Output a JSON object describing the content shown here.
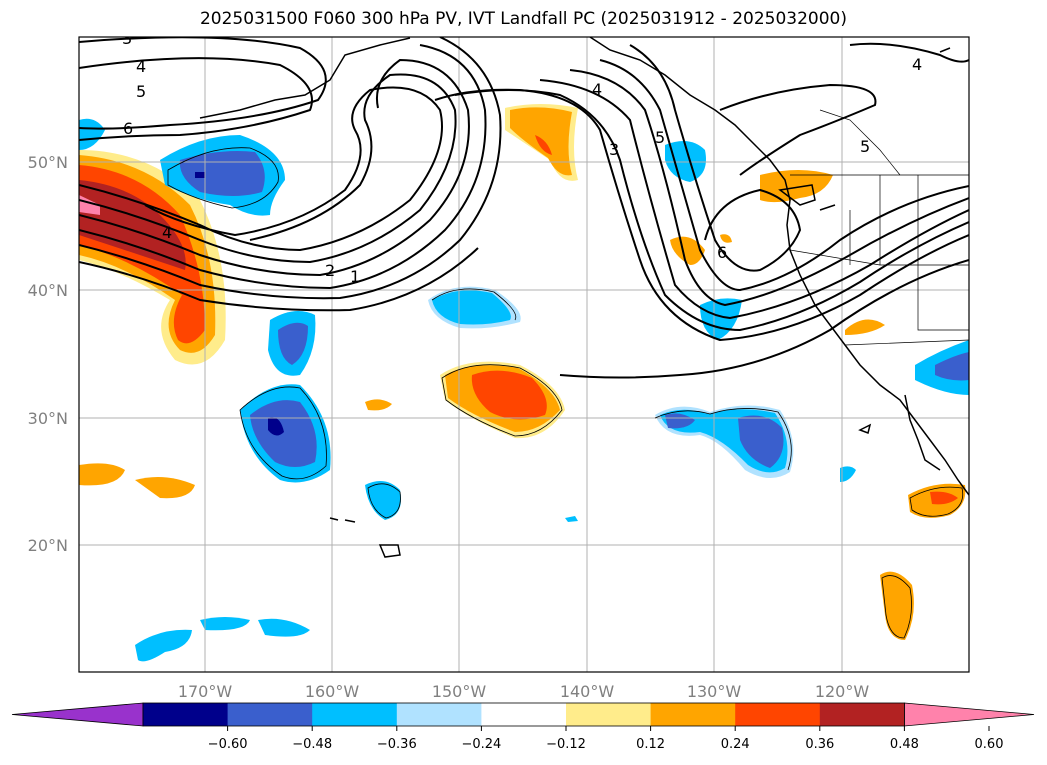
{
  "title": "2025031500 F060 300 hPa PV, IVT Landfall PC (2025031912 - 2025032000)",
  "map": {
    "lat_labels": [
      "50°N",
      "40°N",
      "30°N",
      "20°N"
    ],
    "lon_labels": [
      "170°W",
      "160°W",
      "150°W",
      "140°W",
      "130°W",
      "120°W"
    ],
    "contour_labels": [
      "4",
      "5",
      "6",
      "4",
      "2",
      "1",
      "4",
      "3",
      "5",
      "6",
      "4",
      "5",
      "3"
    ],
    "colorbar": {
      "ticks": [
        "−0.60",
        "−0.48",
        "−0.36",
        "−0.24",
        "−0.12",
        "0.12",
        "0.24",
        "0.36",
        "0.48",
        "0.60"
      ],
      "colors": [
        "#9932cc",
        "#00008b",
        "#3a5fcd",
        "#00bfff",
        "#b0e2ff",
        "#ffffff",
        "#ffec8b",
        "#ffa500",
        "#ff4500",
        "#b22222",
        "#ff82ab"
      ]
    }
  }
}
